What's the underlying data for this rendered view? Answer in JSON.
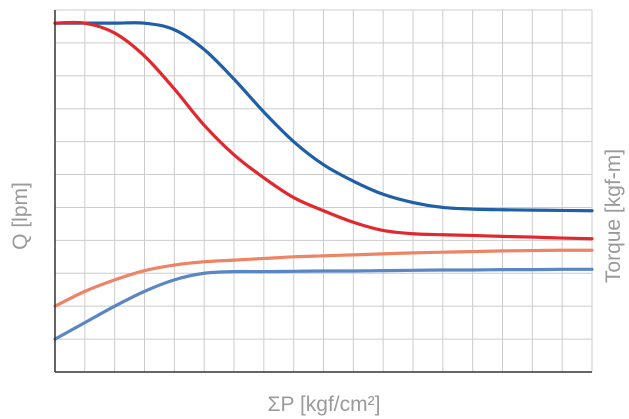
{
  "chart_data": {
    "type": "line",
    "title": "",
    "xlabel": "ΣP [kgf/cm²]",
    "ylabel_left": "Q [lpm]",
    "ylabel_right": "Torque [kgf-m]",
    "grid": true,
    "xlim": [
      0,
      18
    ],
    "ylim": [
      0,
      11
    ],
    "series": [
      {
        "color": "#1f5fa8",
        "axis": "left",
        "x": [
          0,
          1,
          2,
          3,
          4,
          5,
          6,
          7,
          8,
          9,
          10,
          11,
          12,
          13,
          14,
          15,
          16,
          17,
          18
        ],
        "y": [
          10.6,
          10.6,
          10.6,
          10.6,
          10.4,
          9.8,
          8.9,
          7.9,
          7.0,
          6.3,
          5.8,
          5.4,
          5.15,
          5.0,
          4.95,
          4.93,
          4.92,
          4.91,
          4.9
        ]
      },
      {
        "color": "#e0282e",
        "axis": "left",
        "x": [
          0,
          1,
          2,
          3,
          4,
          5,
          6,
          7,
          8,
          9,
          10,
          11,
          12,
          13,
          14,
          15,
          16,
          17,
          18
        ],
        "y": [
          10.6,
          10.6,
          10.3,
          9.6,
          8.6,
          7.5,
          6.6,
          5.9,
          5.3,
          4.9,
          4.55,
          4.3,
          4.2,
          4.17,
          4.15,
          4.12,
          4.1,
          4.07,
          4.05
        ]
      },
      {
        "color": "#ee8466",
        "axis": "right",
        "x": [
          0,
          1,
          2,
          3,
          4,
          5,
          6,
          7,
          8,
          9,
          10,
          11,
          12,
          13,
          14,
          15,
          16,
          17,
          18
        ],
        "y": [
          2.0,
          2.45,
          2.8,
          3.08,
          3.25,
          3.35,
          3.4,
          3.45,
          3.5,
          3.53,
          3.56,
          3.59,
          3.62,
          3.64,
          3.66,
          3.68,
          3.69,
          3.7,
          3.7
        ]
      },
      {
        "color": "#5b86c4",
        "axis": "right",
        "x": [
          0,
          1,
          2,
          3,
          4,
          5,
          6,
          7,
          8,
          9,
          10,
          11,
          12,
          13,
          14,
          15,
          16,
          17,
          18
        ],
        "y": [
          1.0,
          1.5,
          2.0,
          2.45,
          2.8,
          3.0,
          3.05,
          3.05,
          3.06,
          3.07,
          3.07,
          3.08,
          3.09,
          3.1,
          3.1,
          3.11,
          3.11,
          3.12,
          3.12
        ]
      }
    ]
  },
  "colors": {
    "grid": "#cccccc",
    "axis": "#333333",
    "label": "#9a9a9a"
  }
}
